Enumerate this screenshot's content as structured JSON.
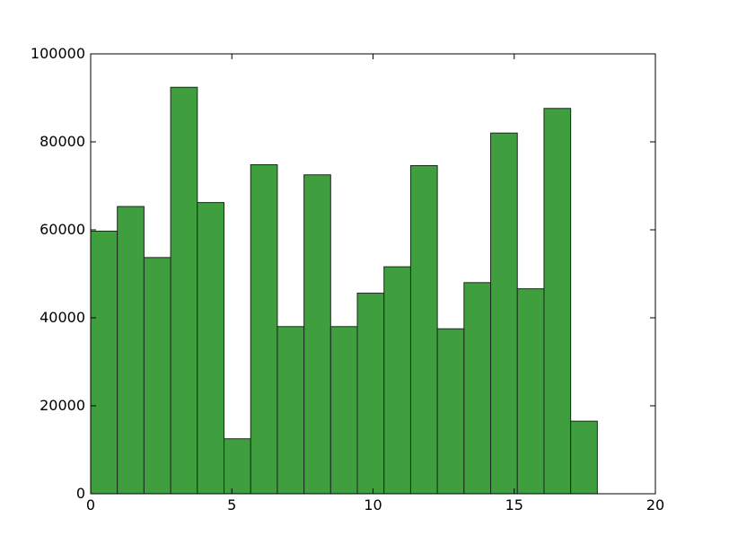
{
  "chart_data": {
    "type": "bar",
    "title": "",
    "xlabel": "",
    "ylabel": "",
    "bar_color": "#3f9f3f",
    "edge_color": "#1a2a1a",
    "xlim": [
      0,
      20
    ],
    "ylim": [
      0,
      100000
    ],
    "grid": false,
    "x_ticks": [
      0,
      5,
      10,
      15,
      20
    ],
    "x_tick_labels": [
      "0",
      "5",
      "10",
      "15",
      "20"
    ],
    "y_ticks": [
      0,
      20000,
      40000,
      60000,
      80000,
      100000
    ],
    "y_tick_labels": [
      "0",
      "20000",
      "40000",
      "60000",
      "80000",
      "100000"
    ],
    "bin_edges": [
      0,
      0.944,
      1.889,
      2.833,
      3.778,
      4.722,
      5.667,
      6.611,
      7.556,
      8.5,
      9.444,
      10.389,
      11.333,
      12.278,
      13.222,
      14.167,
      15.111,
      16.056,
      17.0,
      17.944
    ],
    "values": [
      59700,
      65300,
      53700,
      92400,
      66200,
      12500,
      74800,
      38000,
      72500,
      38000,
      45600,
      51600,
      74600,
      37500,
      48000,
      82000,
      46600,
      87600,
      16500
    ]
  }
}
